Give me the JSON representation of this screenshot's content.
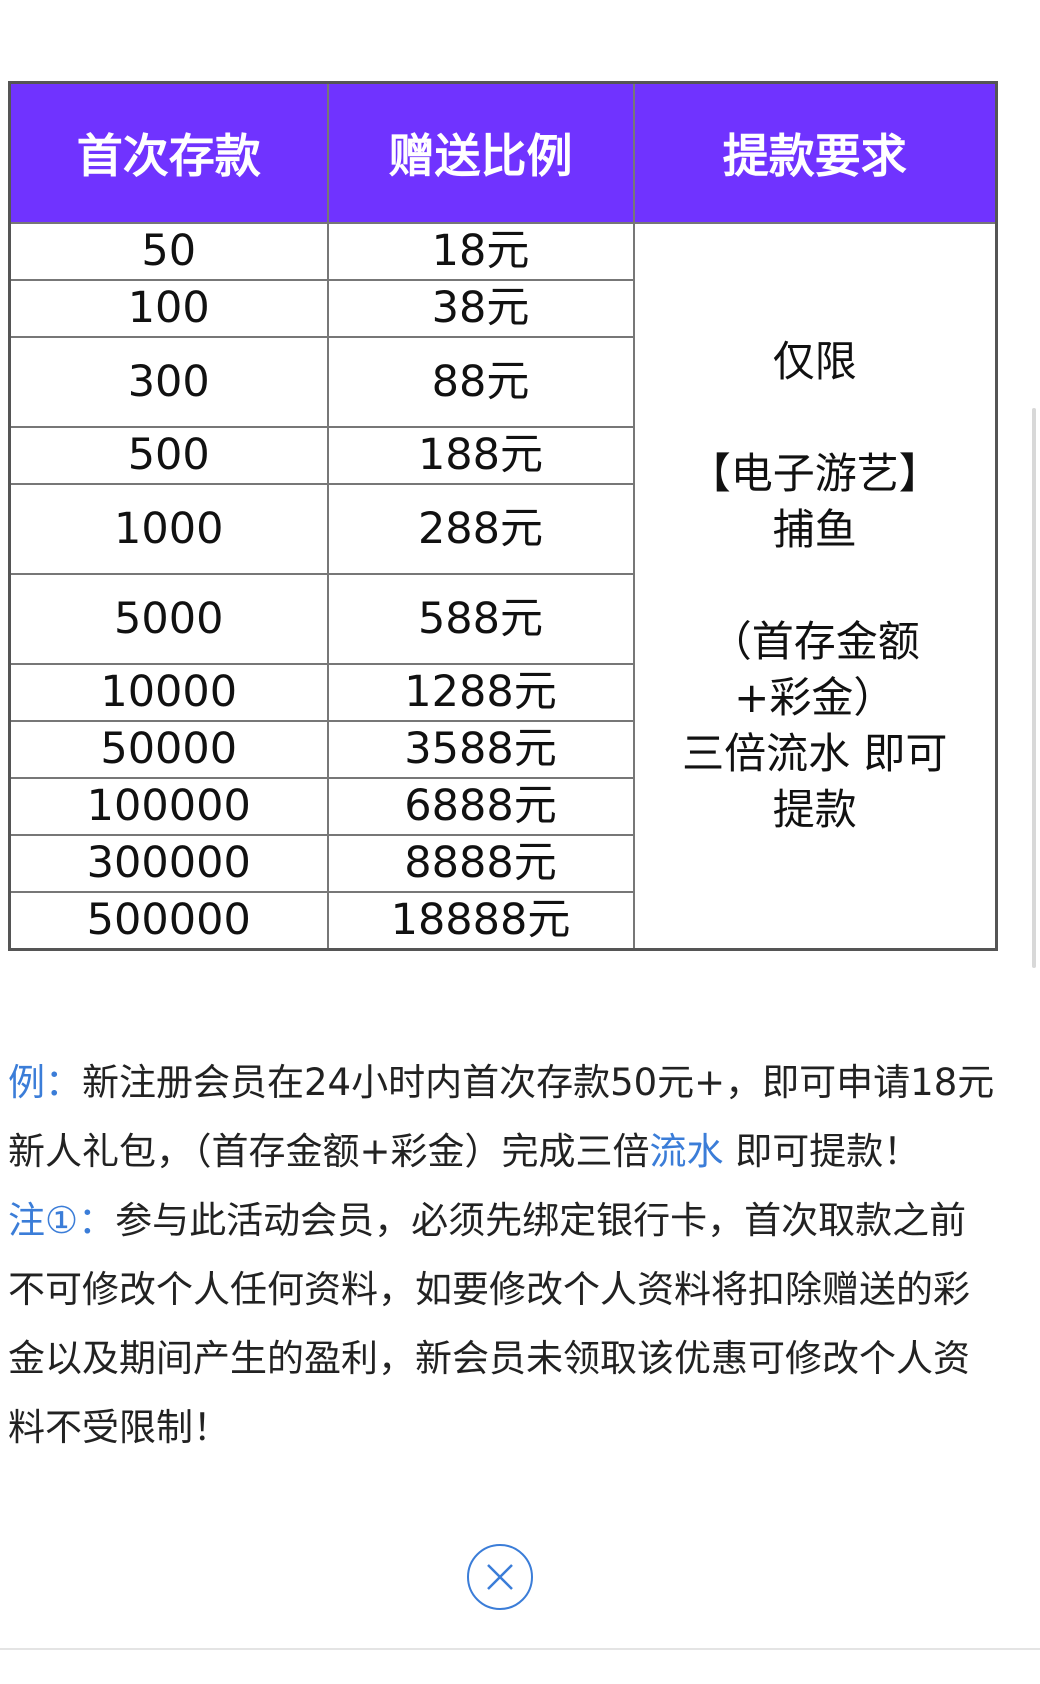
{
  "table": {
    "headers": [
      "首次存款",
      "赠送比例",
      "提款要求"
    ],
    "rows": [
      {
        "deposit": "50",
        "bonus": "18元"
      },
      {
        "deposit": "100",
        "bonus": "38元"
      },
      {
        "deposit": "300",
        "bonus": "88元"
      },
      {
        "deposit": "500",
        "bonus": "188元"
      },
      {
        "deposit": "1000",
        "bonus": "288元"
      },
      {
        "deposit": "5000",
        "bonus": "588元"
      },
      {
        "deposit": "10000",
        "bonus": "1288元"
      },
      {
        "deposit": "50000",
        "bonus": "3588元"
      },
      {
        "deposit": "100000",
        "bonus": "6888元"
      },
      {
        "deposit": "300000",
        "bonus": "8888元"
      },
      {
        "deposit": "500000",
        "bonus": "18888元"
      }
    ],
    "requirement_lines": [
      "仅限",
      "",
      "【电子游艺】",
      "捕鱼",
      "",
      "（首存金额",
      "+彩金）",
      "三倍流水 即可",
      "提款"
    ]
  },
  "notes": {
    "example_label": "例：",
    "example_text_1": "新注册会员在24小时内首次存款50元+，即可申请18元新人礼包，（首存金额+彩金）完成三倍",
    "example_link": "流水",
    "example_text_2": " 即可提款！",
    "note_label": "注①：",
    "note_text": "参与此活动会员，必须先绑定银行卡，首次取款之前不可修改个人任何资料，如要修改个人资料将扣除赠送的彩金以及期间产生的盈利，新会员未领取该优惠可修改个人资料不受限制！"
  },
  "colors": {
    "header_bg": "#7033ff",
    "accent": "#3b7dd8"
  },
  "close_button": {
    "icon": "close-circle-icon"
  }
}
